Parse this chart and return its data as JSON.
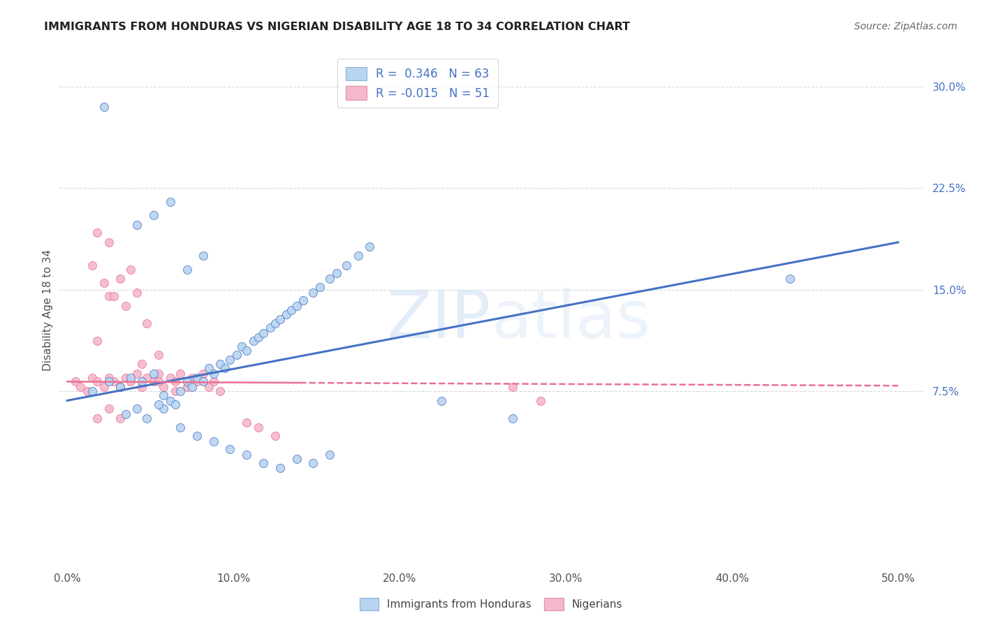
{
  "title": "IMMIGRANTS FROM HONDURAS VS NIGERIAN DISABILITY AGE 18 TO 34 CORRELATION CHART",
  "source": "Source: ZipAtlas.com",
  "xlabel_ticks": [
    "0.0%",
    "10.0%",
    "20.0%",
    "30.0%",
    "40.0%",
    "50.0%"
  ],
  "xlabel_vals": [
    0.0,
    0.1,
    0.2,
    0.3,
    0.4,
    0.5
  ],
  "ylabel_ticks": [
    "7.5%",
    "15.0%",
    "22.5%",
    "30.0%"
  ],
  "ylabel_vals": [
    0.075,
    0.15,
    0.225,
    0.3
  ],
  "ylabel_label": "Disability Age 18 to 34",
  "xlim": [
    -0.005,
    0.515
  ],
  "ylim": [
    -0.055,
    0.325
  ],
  "watermark": "ZIPatlas",
  "legend_r1": "R =  0.346   N = 63",
  "legend_r2": "R = -0.015   N = 51",
  "legend_color1": "#b8d4f0",
  "legend_color2": "#f4b8cc",
  "legend_label1": "Immigrants from Honduras",
  "legend_label2": "Nigerians",
  "blue_line_color": "#4472c4",
  "pink_line_color": "#e87090",
  "blue_scatter_color": "#b8d4f0",
  "pink_scatter_color": "#f4b8cc",
  "grid_color": "#d8d8d8",
  "bg_color": "#ffffff",
  "title_color": "#222222",
  "blue_x": [
    0.022,
    0.058,
    0.058,
    0.062,
    0.065,
    0.068,
    0.072,
    0.075,
    0.078,
    0.082,
    0.085,
    0.088,
    0.092,
    0.095,
    0.098,
    0.102,
    0.105,
    0.108,
    0.112,
    0.115,
    0.118,
    0.122,
    0.125,
    0.128,
    0.132,
    0.135,
    0.138,
    0.142,
    0.148,
    0.152,
    0.158,
    0.162,
    0.168,
    0.175,
    0.182,
    0.015,
    0.025,
    0.032,
    0.038,
    0.045,
    0.052,
    0.035,
    0.042,
    0.048,
    0.055,
    0.068,
    0.078,
    0.088,
    0.098,
    0.108,
    0.118,
    0.128,
    0.138,
    0.148,
    0.158,
    0.042,
    0.052,
    0.062,
    0.072,
    0.082,
    0.225,
    0.268,
    0.435
  ],
  "blue_y": [
    0.285,
    0.062,
    0.072,
    0.068,
    0.065,
    0.075,
    0.082,
    0.078,
    0.085,
    0.082,
    0.092,
    0.088,
    0.095,
    0.092,
    0.098,
    0.102,
    0.108,
    0.105,
    0.112,
    0.115,
    0.118,
    0.122,
    0.125,
    0.128,
    0.132,
    0.135,
    0.138,
    0.142,
    0.148,
    0.152,
    0.158,
    0.162,
    0.168,
    0.175,
    0.182,
    0.075,
    0.082,
    0.078,
    0.085,
    0.082,
    0.088,
    0.058,
    0.062,
    0.055,
    0.065,
    0.048,
    0.042,
    0.038,
    0.032,
    0.028,
    0.022,
    0.018,
    0.025,
    0.022,
    0.028,
    0.198,
    0.205,
    0.215,
    0.165,
    0.175,
    0.068,
    0.055,
    0.158
  ],
  "pink_x": [
    0.005,
    0.008,
    0.012,
    0.015,
    0.018,
    0.022,
    0.025,
    0.028,
    0.032,
    0.035,
    0.038,
    0.042,
    0.045,
    0.048,
    0.052,
    0.055,
    0.058,
    0.062,
    0.065,
    0.068,
    0.072,
    0.075,
    0.078,
    0.082,
    0.085,
    0.088,
    0.092,
    0.018,
    0.025,
    0.032,
    0.038,
    0.042,
    0.048,
    0.055,
    0.018,
    0.025,
    0.032,
    0.015,
    0.022,
    0.028,
    0.035,
    0.045,
    0.055,
    0.065,
    0.108,
    0.115,
    0.125,
    0.268,
    0.285,
    0.018,
    0.025
  ],
  "pink_y": [
    0.082,
    0.078,
    0.075,
    0.085,
    0.082,
    0.078,
    0.085,
    0.082,
    0.078,
    0.085,
    0.082,
    0.088,
    0.078,
    0.085,
    0.082,
    0.088,
    0.078,
    0.085,
    0.082,
    0.088,
    0.078,
    0.085,
    0.082,
    0.088,
    0.078,
    0.082,
    0.075,
    0.112,
    0.145,
    0.158,
    0.165,
    0.148,
    0.125,
    0.102,
    0.055,
    0.062,
    0.055,
    0.168,
    0.155,
    0.145,
    0.138,
    0.095,
    0.082,
    0.075,
    0.052,
    0.048,
    0.042,
    0.078,
    0.068,
    0.192,
    0.185
  ],
  "blue_line_x": [
    0.0,
    0.5
  ],
  "blue_line_y": [
    0.068,
    0.185
  ],
  "pink_line_x": [
    0.0,
    0.5
  ],
  "pink_line_y": [
    0.082,
    0.079
  ],
  "pink_line_solid_end": 0.14
}
